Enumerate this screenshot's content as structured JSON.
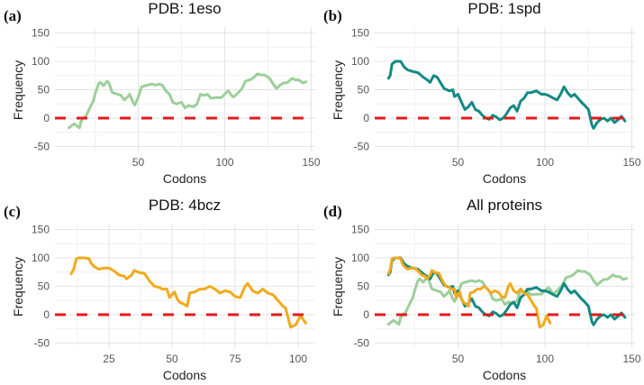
{
  "chart_data": [
    {
      "type": "line",
      "panel_label": "(a)",
      "title": "PDB: 1eso",
      "xlabel": "Codons",
      "ylabel": "Frequency",
      "xlim": [
        0,
        150
      ],
      "ylim": [
        -55,
        150
      ],
      "xticks": [
        50,
        100,
        150
      ],
      "xtick_labels": [
        "50",
        "100",
        "150"
      ],
      "yticks": [
        -50,
        0,
        50,
        100,
        150
      ],
      "ytick_labels": [
        "-50",
        "0",
        "50",
        "100",
        "150"
      ],
      "grid": true,
      "reference_line": {
        "y": 0,
        "style": "dashed",
        "color": "#e31a1c"
      },
      "series": [
        {
          "name": "1eso",
          "color": "#9ccf9a",
          "x": [
            10,
            12,
            13,
            15,
            16,
            17,
            19,
            20,
            22,
            24,
            25,
            27,
            28,
            30,
            32,
            33,
            35,
            38,
            40,
            42,
            44,
            45,
            47,
            48,
            50,
            52,
            55,
            58,
            60,
            62,
            64,
            66,
            68,
            70,
            72,
            75,
            77,
            79,
            82,
            84,
            86,
            88,
            90,
            92,
            95,
            98,
            100,
            102,
            104,
            105,
            107,
            110,
            112,
            115,
            117,
            119,
            121,
            123,
            126,
            128,
            130,
            132,
            134,
            136,
            139,
            141,
            143,
            145,
            147
          ],
          "y": [
            -17,
            -12,
            -10,
            -15,
            -17,
            -5,
            2,
            5,
            18,
            30,
            42,
            60,
            63,
            57,
            65,
            62,
            45,
            42,
            40,
            32,
            38,
            42,
            28,
            23,
            37,
            55,
            58,
            60,
            58,
            60,
            58,
            48,
            42,
            28,
            25,
            28,
            18,
            22,
            20,
            25,
            42,
            40,
            42,
            35,
            36,
            36,
            42,
            48,
            40,
            37,
            42,
            52,
            65,
            68,
            72,
            78,
            76,
            76,
            70,
            60,
            52,
            58,
            62,
            62,
            70,
            67,
            67,
            62,
            64
          ]
        }
      ]
    },
    {
      "type": "line",
      "panel_label": "(b)",
      "title": "PDB: 1spd",
      "xlabel": "Codons",
      "ylabel": "Frequency",
      "xlim": [
        0,
        150
      ],
      "ylim": [
        -55,
        150
      ],
      "xticks": [
        50,
        100,
        150
      ],
      "xtick_labels": [
        "50",
        "100",
        "150"
      ],
      "yticks": [
        -50,
        0,
        50,
        100,
        150
      ],
      "ytick_labels": [
        "-50",
        "0",
        "50",
        "100",
        "150"
      ],
      "grid": true,
      "reference_line": {
        "y": 0,
        "style": "dashed",
        "color": "#e31a1c"
      },
      "series": [
        {
          "name": "1spd",
          "color": "#138a83",
          "x": [
            10,
            11,
            12,
            14,
            17,
            19,
            21,
            24,
            27,
            30,
            32,
            34,
            36,
            38,
            40,
            42,
            45,
            47,
            48,
            50,
            52,
            54,
            56,
            58,
            60,
            62,
            64,
            66,
            68,
            70,
            72,
            74,
            76,
            78,
            80,
            82,
            84,
            86,
            88,
            90,
            92,
            95,
            98,
            100,
            102,
            105,
            107,
            109,
            111,
            113,
            115,
            117,
            119,
            121,
            123,
            125,
            127,
            128,
            130,
            132,
            134,
            136,
            138,
            140,
            142,
            144,
            145,
            146
          ],
          "y": [
            70,
            75,
            95,
            100,
            100,
            90,
            85,
            82,
            80,
            72,
            68,
            63,
            75,
            72,
            62,
            52,
            48,
            50,
            38,
            42,
            28,
            15,
            20,
            28,
            15,
            12,
            5,
            0,
            -2,
            5,
            2,
            -3,
            0,
            8,
            18,
            22,
            12,
            30,
            35,
            45,
            45,
            48,
            42,
            42,
            40,
            35,
            32,
            42,
            55,
            45,
            38,
            42,
            35,
            28,
            22,
            15,
            -12,
            -18,
            -8,
            -2,
            0,
            -5,
            0,
            -8,
            -3,
            3,
            0,
            -5
          ]
        }
      ]
    },
    {
      "type": "line",
      "panel_label": "(c)",
      "title": "PDB: 4bcz",
      "xlabel": "Codons",
      "ylabel": "Frequency",
      "xlim": [
        0,
        105
      ],
      "ylim": [
        -55,
        150
      ],
      "xticks": [
        25,
        50,
        75,
        100
      ],
      "xtick_labels": [
        "25",
        "50",
        "75",
        "100"
      ],
      "yticks": [
        -50,
        0,
        50,
        100,
        150
      ],
      "ytick_labels": [
        "-50",
        "0",
        "50",
        "100",
        "150"
      ],
      "grid": true,
      "reference_line": {
        "y": 0,
        "style": "dashed",
        "color": "#e31a1c"
      },
      "series": [
        {
          "name": "4bcz",
          "color": "#f2a91c",
          "x": [
            10,
            11,
            12,
            13,
            15,
            17,
            18,
            19,
            21,
            23,
            25,
            27,
            29,
            31,
            32,
            34,
            35,
            37,
            39,
            41,
            43,
            45,
            46,
            48,
            49,
            50,
            51,
            52,
            53,
            55,
            56,
            57,
            59,
            61,
            63,
            65,
            67,
            69,
            71,
            73,
            75,
            77,
            79,
            80,
            82,
            84,
            86,
            88,
            90,
            92,
            94,
            95,
            96,
            97,
            99,
            101,
            103
          ],
          "y": [
            72,
            80,
            98,
            100,
            100,
            99,
            90,
            85,
            80,
            82,
            82,
            77,
            70,
            68,
            63,
            70,
            78,
            74,
            73,
            60,
            50,
            48,
            45,
            45,
            30,
            35,
            40,
            28,
            22,
            18,
            15,
            38,
            40,
            45,
            45,
            50,
            45,
            38,
            42,
            40,
            32,
            30,
            50,
            55,
            42,
            38,
            45,
            38,
            35,
            25,
            15,
            12,
            -5,
            -22,
            -18,
            -2,
            -15
          ]
        }
      ]
    },
    {
      "type": "line",
      "panel_label": "(d)",
      "title": "All proteins",
      "xlabel": "Codons",
      "ylabel": "Frequency",
      "xlim": [
        0,
        150
      ],
      "ylim": [
        -55,
        150
      ],
      "xticks": [
        50,
        100,
        150
      ],
      "xtick_labels": [
        "50",
        "100",
        "150"
      ],
      "yticks": [
        -50,
        0,
        50,
        100,
        150
      ],
      "ytick_labels": [
        "-50",
        "0",
        "50",
        "100",
        "150"
      ],
      "grid": true,
      "reference_line": {
        "y": 0,
        "style": "dashed",
        "color": "#e31a1c"
      },
      "series_refs": [
        "1eso",
        "1spd",
        "4bcz"
      ]
    }
  ]
}
